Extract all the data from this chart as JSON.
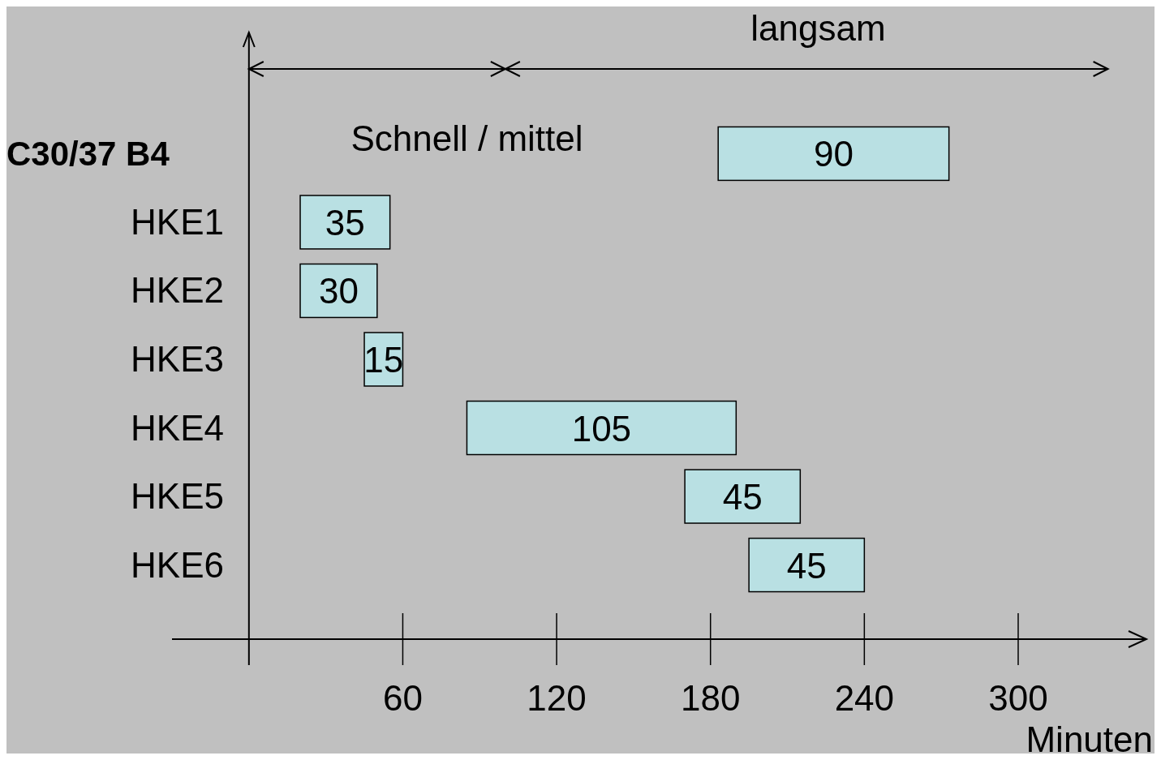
{
  "chart_data": {
    "type": "bar",
    "orientation": "horizontal",
    "categories": [
      "C30/37 B4",
      "HKE1",
      "HKE2",
      "HKE3",
      "HKE4",
      "HKE5",
      "HKE6"
    ],
    "values": [
      90,
      35,
      30,
      15,
      105,
      45,
      45
    ],
    "base": [
      183,
      20,
      20,
      45,
      85,
      170,
      195
    ],
    "color": "#b9e0e3",
    "data_labels": true,
    "xlim": [
      -30,
      350
    ],
    "xticks": [
      60,
      120,
      180,
      240,
      300
    ],
    "xlabel": "Minuten",
    "annotations": [
      "langsam",
      "Schnell / mittel"
    ]
  }
}
